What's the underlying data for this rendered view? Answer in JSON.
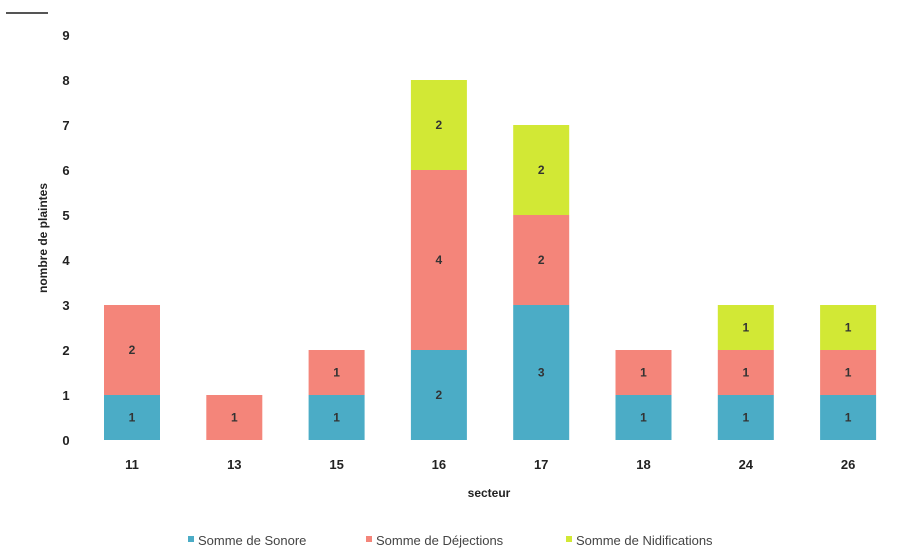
{
  "chart_data": {
    "type": "bar",
    "stacked": true,
    "categories": [
      "11",
      "13",
      "15",
      "16",
      "17",
      "18",
      "24",
      "26"
    ],
    "series": [
      {
        "name": "Somme de Sonore",
        "color": "#4bacc6",
        "values": [
          1,
          null,
          1,
          2,
          3,
          1,
          1,
          1
        ]
      },
      {
        "name": "Somme de Déjections",
        "color": "#f4857a",
        "values": [
          2,
          1,
          1,
          4,
          2,
          1,
          1,
          1
        ]
      },
      {
        "name": "Somme de Nidifications",
        "color": "#d2e835",
        "values": [
          null,
          null,
          null,
          2,
          2,
          null,
          1,
          1
        ]
      }
    ],
    "xlabel": "secteur",
    "ylabel": "nombre de plaintes",
    "ylim": [
      0,
      9
    ],
    "yticks": [
      "0",
      "1",
      "2",
      "3",
      "4",
      "5",
      "6",
      "7",
      "8",
      "9"
    ],
    "grid": false,
    "legend_position": "bottom"
  }
}
